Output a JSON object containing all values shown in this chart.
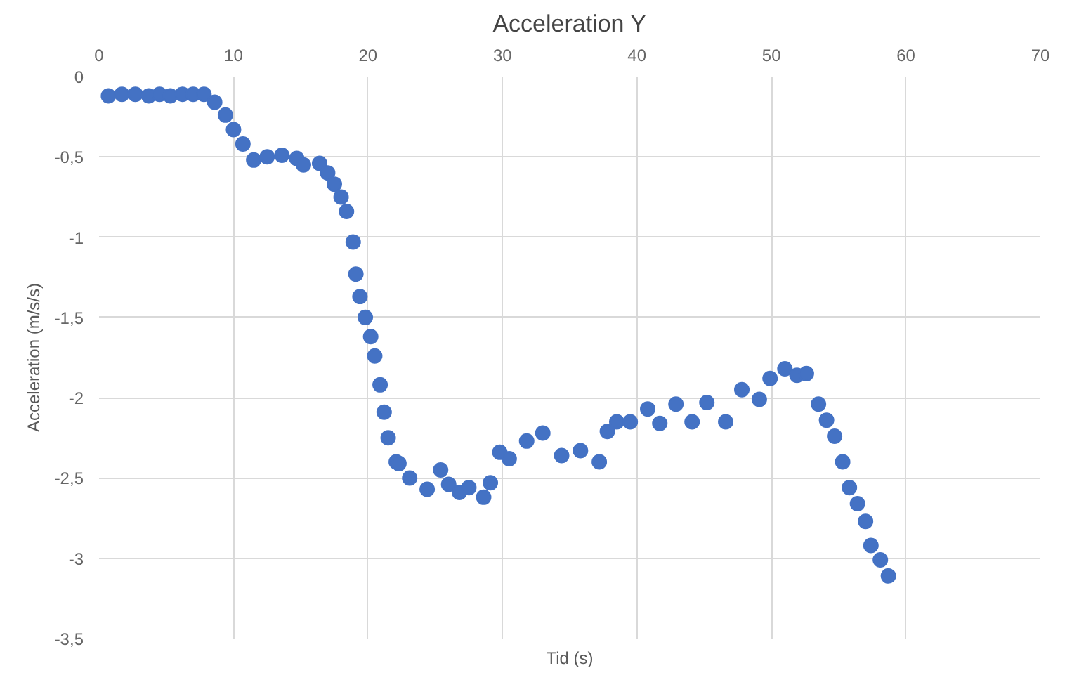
{
  "chart_data": {
    "type": "scatter",
    "title": "Acceleration Y",
    "xlabel": "Tid (s)",
    "ylabel": "Acceleration (m/s/s)",
    "xlim": [
      0,
      70
    ],
    "xticks": [
      0,
      10,
      20,
      30,
      40,
      50,
      60,
      70
    ],
    "ylim": [
      -3.5,
      0
    ],
    "yticks": [
      {
        "value": 0,
        "label": "0"
      },
      {
        "value": -0.5,
        "label": "-0,5"
      },
      {
        "value": -1,
        "label": "-1"
      },
      {
        "value": -1.5,
        "label": "-1,5"
      },
      {
        "value": -2,
        "label": "-2"
      },
      {
        "value": -2.5,
        "label": "-2,5"
      },
      {
        "value": -3,
        "label": "-3"
      },
      {
        "value": -3.5,
        "label": "-3,5"
      }
    ],
    "grid": true,
    "marker": "circle",
    "series": [
      {
        "color": "#4472c4",
        "x": [
          0.7,
          1.7,
          2.7,
          3.7,
          4.5,
          5.3,
          6.2,
          7.0,
          7.8,
          8.6,
          9.4,
          10.0,
          10.7,
          11.5,
          12.5,
          13.6,
          14.7,
          15.2,
          16.4,
          17.0,
          17.5,
          18.0,
          18.4,
          18.9,
          19.1,
          19.4,
          19.8,
          20.2,
          20.5,
          20.9,
          21.2,
          21.5,
          22.1,
          22.3,
          23.1,
          24.4,
          25.4,
          26.0,
          26.8,
          27.5,
          28.6,
          29.1,
          29.8,
          30.5,
          31.8,
          33.0,
          34.4,
          35.8,
          37.2,
          37.8,
          38.5,
          39.5,
          40.8,
          41.7,
          42.9,
          44.1,
          45.2,
          46.6,
          47.8,
          49.1,
          49.9,
          51.0,
          51.9,
          52.6,
          53.5,
          54.1,
          54.7,
          55.3,
          55.8,
          56.4,
          57.0,
          57.4,
          58.1,
          58.7
        ],
        "values": [
          -0.12,
          -0.11,
          -0.11,
          -0.12,
          -0.11,
          -0.12,
          -0.11,
          -0.11,
          -0.11,
          -0.16,
          -0.24,
          -0.33,
          -0.42,
          -0.52,
          -0.5,
          -0.49,
          -0.51,
          -0.55,
          -0.54,
          -0.6,
          -0.67,
          -0.75,
          -0.84,
          -1.03,
          -1.23,
          -1.37,
          -1.5,
          -1.62,
          -1.74,
          -1.92,
          -2.09,
          -2.25,
          -2.4,
          -2.41,
          -2.5,
          -2.57,
          -2.45,
          -2.54,
          -2.59,
          -2.56,
          -2.62,
          -2.53,
          -2.34,
          -2.38,
          -2.27,
          -2.22,
          -2.36,
          -2.33,
          -2.4,
          -2.21,
          -2.15,
          -2.15,
          -2.07,
          -2.16,
          -2.04,
          -2.15,
          -2.03,
          -2.15,
          -1.95,
          -2.01,
          -1.88,
          -1.82,
          -1.86,
          -1.85,
          -2.04,
          -2.14,
          -2.24,
          -2.4,
          -2.56,
          -2.66,
          -2.77,
          -2.92,
          -3.01,
          -3.11
        ]
      }
    ]
  }
}
